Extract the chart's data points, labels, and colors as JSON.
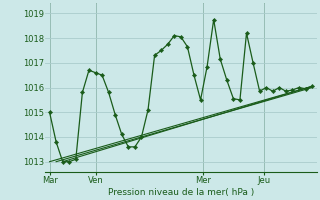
{
  "bg_color": "#cce8e8",
  "plot_bg_color": "#cce8e8",
  "grid_color": "#aacccc",
  "line_color": "#1a5c1a",
  "title": "Pression niveau de la mer( hPa )",
  "ylim": [
    1012.6,
    1019.4
  ],
  "yticks": [
    1013,
    1014,
    1015,
    1016,
    1017,
    1018,
    1019
  ],
  "day_labels": [
    "Mar",
    "Ven",
    "Mer",
    "Jeu"
  ],
  "day_positions": [
    0,
    21,
    70,
    98
  ],
  "vline_positions": [
    0,
    21,
    70,
    98
  ],
  "num_x_points": 120,
  "series1_x": [
    0,
    3,
    6,
    9,
    12,
    15,
    18,
    21,
    24,
    27,
    30,
    33,
    36,
    39,
    42,
    45,
    48,
    51,
    54,
    57,
    60,
    63,
    66,
    69,
    72,
    75,
    78,
    81,
    84,
    87,
    90,
    93,
    96,
    99,
    102,
    105,
    108,
    111,
    114,
    117,
    120
  ],
  "series1_y": [
    1015.0,
    1013.8,
    1013.0,
    1013.0,
    1013.1,
    1015.8,
    1016.7,
    1016.6,
    1016.5,
    1015.8,
    1014.9,
    1014.1,
    1013.6,
    1013.6,
    1014.0,
    1015.1,
    1017.3,
    1017.5,
    1017.75,
    1018.1,
    1018.05,
    1017.65,
    1016.5,
    1015.5,
    1016.85,
    1018.75,
    1017.15,
    1016.3,
    1015.55,
    1015.5,
    1018.2,
    1017.0,
    1015.85,
    1016.0,
    1015.85,
    1016.0,
    1015.85,
    1015.9,
    1016.0,
    1015.95,
    1016.05
  ],
  "trend_lines": [
    {
      "x": [
        0,
        120
      ],
      "y": [
        1013.0,
        1016.05
      ]
    },
    {
      "x": [
        3,
        120
      ],
      "y": [
        1013.0,
        1016.0
      ]
    },
    {
      "x": [
        6,
        120
      ],
      "y": [
        1013.0,
        1016.05
      ]
    }
  ],
  "xlim": [
    -2,
    122
  ]
}
